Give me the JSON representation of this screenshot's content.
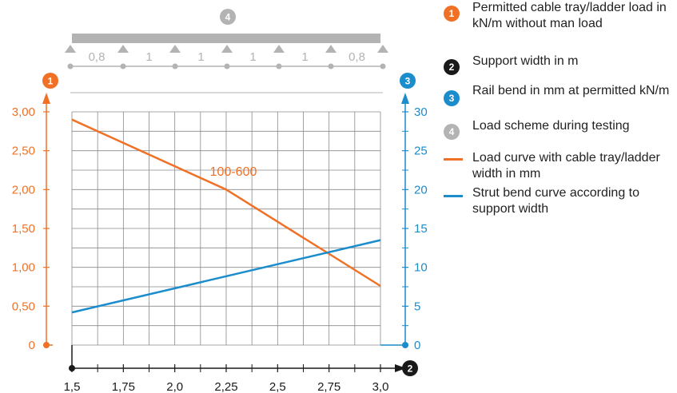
{
  "chart_data": {
    "type": "line",
    "x_axis": {
      "badge": "2",
      "ticks": [
        "1,5",
        "1,75",
        "2,0",
        "2,25",
        "2,5",
        "2,75",
        "3,0"
      ],
      "range": [
        1.5,
        3.0
      ]
    },
    "y_left": {
      "badge": "1",
      "ticks": [
        "0",
        "0,50",
        "1,00",
        "1,50",
        "2,00",
        "2,50",
        "3,00"
      ],
      "range": [
        0,
        3.0
      ]
    },
    "y_right": {
      "badge": "3",
      "ticks": [
        "0",
        "5",
        "10",
        "15",
        "20",
        "25",
        "30"
      ],
      "range": [
        0,
        30
      ]
    },
    "series": [
      {
        "name": "100-600",
        "axis": "left",
        "color": "#f07125",
        "x": [
          1.5,
          2.25,
          3.0
        ],
        "y": [
          2.9,
          2.0,
          0.76
        ]
      },
      {
        "axis": "right",
        "color": "#1b8ccc",
        "x": [
          1.5,
          3.0
        ],
        "y": [
          4.2,
          13.5
        ]
      }
    ],
    "grid": true,
    "load_scheme": {
      "badge": "4",
      "spans": [
        "0,8",
        "1",
        "1",
        "1",
        "1",
        "0,8"
      ]
    }
  },
  "legend": {
    "colors": {
      "orange": "#f07125",
      "black": "#1a1a1a",
      "blue": "#1b8ccc",
      "gray": "#b3b3b3"
    },
    "items": [
      {
        "badge": "1",
        "text": "Permitted cable tray/ladder load in kN/m without man load"
      },
      {
        "badge": "2",
        "text": "Support width in m"
      },
      {
        "badge": "3",
        "text": "Rail bend in mm at permitted kN/m"
      },
      {
        "badge": "4",
        "text": "Load scheme during testing"
      },
      {
        "text": "Load curve with cable tray/ladder width in mm"
      },
      {
        "text": "Strut bend curve according to support width"
      }
    ]
  }
}
